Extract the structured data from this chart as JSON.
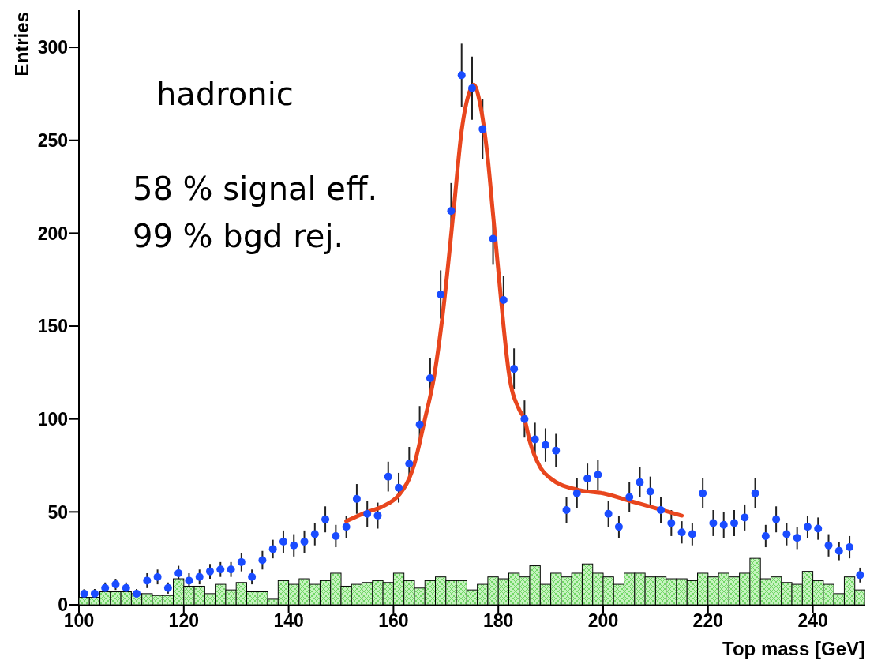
{
  "chart_data": {
    "type": "scatter",
    "xlabel": "Top mass [GeV]",
    "ylabel": "Entries",
    "annotations": [
      "hadronic",
      "58 % signal eff.",
      "99 % bgd rej."
    ],
    "xlim": [
      100,
      250
    ],
    "xticks": [
      100,
      120,
      140,
      160,
      180,
      200,
      220,
      240
    ],
    "ylim": [
      0,
      320
    ],
    "yticks": [
      0,
      50,
      100,
      150,
      200,
      250,
      300
    ],
    "marker": "circle",
    "series": [
      {
        "type": "histogram",
        "color": "#c6f3bf",
        "bins": [
          100,
          102,
          104,
          106,
          108,
          110,
          112,
          114,
          116,
          118,
          120,
          122,
          124,
          126,
          128,
          130,
          132,
          134,
          136,
          138,
          140,
          142,
          144,
          146,
          148,
          150,
          152,
          154,
          156,
          158,
          160,
          162,
          164,
          166,
          168,
          170,
          172,
          174,
          176,
          178,
          180,
          182,
          184,
          186,
          188,
          190,
          192,
          194,
          196,
          198,
          200,
          202,
          204,
          206,
          208,
          210,
          212,
          214,
          216,
          218,
          220,
          222,
          224,
          226,
          228,
          230,
          232,
          234,
          236,
          238,
          240,
          242,
          244,
          246,
          248,
          250
        ],
        "values": [
          4,
          4,
          7,
          7,
          7,
          6,
          6,
          5,
          5,
          14,
          10,
          10,
          6,
          11,
          8,
          12,
          7,
          7,
          3,
          13,
          11,
          14,
          11,
          13,
          17,
          10,
          11,
          12,
          13,
          12,
          17,
          13,
          9,
          13,
          15,
          13,
          13,
          8,
          11,
          15,
          14,
          17,
          15,
          21,
          11,
          17,
          15,
          17,
          22,
          17,
          15,
          11,
          17,
          17,
          15,
          15,
          14,
          14,
          13,
          17,
          15,
          17,
          15,
          17,
          25,
          14,
          15,
          12,
          11,
          18,
          13,
          11,
          6,
          15,
          8
        ]
      },
      {
        "color": "#1a4cff",
        "x": [
          101,
          103,
          105,
          107,
          109,
          111,
          113,
          115,
          117,
          119,
          121,
          123,
          125,
          127,
          129,
          131,
          133,
          135,
          137,
          139,
          141,
          143,
          145,
          147,
          149,
          151,
          153,
          155,
          157,
          159,
          161,
          163,
          165,
          167,
          169,
          171,
          173,
          175,
          177,
          179,
          181,
          183,
          185,
          187,
          189,
          191,
          193,
          195,
          197,
          199,
          201,
          203,
          205,
          207,
          209,
          211,
          213,
          215,
          217,
          219,
          221,
          223,
          225,
          227,
          229,
          231,
          233,
          235,
          237,
          239,
          241,
          243,
          245,
          247,
          249
        ],
        "values": [
          6,
          6,
          9,
          11,
          9,
          6,
          13,
          15,
          9,
          17,
          13,
          15,
          18,
          19,
          19,
          23,
          15,
          24,
          30,
          34,
          32,
          34,
          38,
          46,
          37,
          42,
          57,
          49,
          48,
          69,
          63,
          76,
          97,
          122,
          167,
          212,
          285,
          278,
          256,
          197,
          164,
          127,
          100,
          89,
          86,
          83,
          51,
          60,
          68,
          70,
          49,
          42,
          58,
          66,
          61,
          51,
          44,
          39,
          38,
          60,
          44,
          43,
          44,
          47,
          60,
          37,
          46,
          38,
          36,
          42,
          41,
          32,
          29,
          31,
          16
        ],
        "errors": [
          2.5,
          2.5,
          3,
          3,
          3,
          2.5,
          4,
          4,
          3,
          4,
          4,
          4,
          4,
          4,
          4,
          5,
          4,
          5,
          5,
          6,
          6,
          6,
          6,
          7,
          6,
          6,
          8,
          7,
          7,
          8,
          8,
          9,
          10,
          11,
          13,
          15,
          17,
          17,
          16,
          14,
          13,
          11,
          10,
          9,
          9,
          9,
          7,
          8,
          8,
          8,
          7,
          6,
          8,
          8,
          8,
          7,
          7,
          6,
          6,
          8,
          7,
          7,
          7,
          7,
          8,
          6,
          7,
          6,
          6,
          6,
          6,
          6,
          5,
          6,
          4
        ]
      },
      {
        "type": "line",
        "marker": "none",
        "color": "#e8461e",
        "x": [
          151,
          155,
          158,
          161,
          163,
          164,
          166,
          167.7,
          169.3,
          171.5,
          173,
          174.5,
          175.3,
          176.5,
          178,
          179,
          180,
          181,
          182,
          184,
          185,
          186,
          188,
          190,
          195,
          200,
          205,
          210,
          215
        ],
        "values": [
          45,
          50,
          53,
          59,
          68,
          76,
          100,
          122,
          154,
          213,
          255,
          276,
          280,
          270,
          240,
          210,
          180,
          150,
          125,
          105,
          100,
          88,
          74,
          68,
          62,
          60,
          56,
          52,
          48
        ]
      }
    ]
  }
}
